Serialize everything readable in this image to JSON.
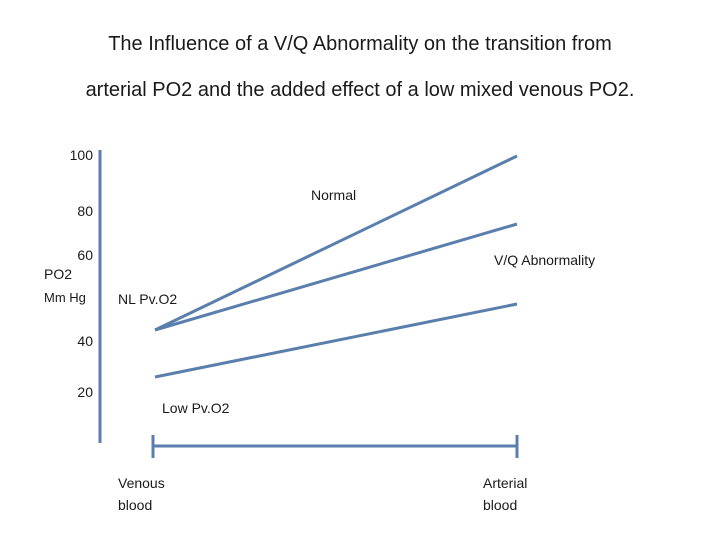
{
  "title": {
    "line1": "The Influence of a V/Q Abnormality on the transition from",
    "line2": "arterial PO2 and the added effect of a low mixed venous  PO2."
  },
  "axis": {
    "y_label_line1": "PO2",
    "y_label_line2": "Mm Hg",
    "ticks": [
      "100",
      "80",
      "60",
      "40",
      "20"
    ],
    "x_start_line1": "Venous",
    "x_start_line2": "blood",
    "x_end_line1": "Arterial",
    "x_end_line2": "blood"
  },
  "lines": {
    "normal": "Normal",
    "vq": "V/Q Abnormality",
    "nl_pvo2": "NL Pv.O2",
    "low_pvo2": "Low Pv.O2"
  },
  "colors": {
    "line": "#5b7fad",
    "axis": "#5b7fad"
  }
}
